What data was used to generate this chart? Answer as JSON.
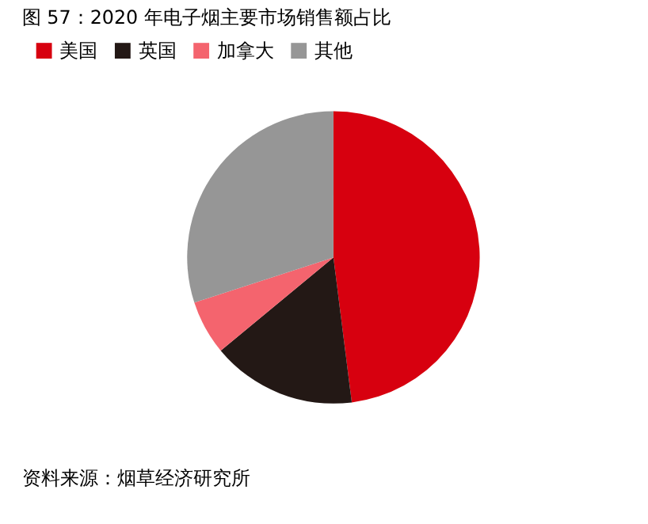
{
  "chart_data": {
    "type": "pie",
    "title": "图 57：2020 年电子烟主要市场销售额占比",
    "categories": [
      "美国",
      "英国",
      "加拿大",
      "其他"
    ],
    "values": [
      48,
      16,
      6,
      30
    ],
    "colors": [
      "#d7000f",
      "#231815",
      "#f4646e",
      "#969696"
    ],
    "legend": "top",
    "annotations": [
      "资料来源：烟草经济研究所"
    ]
  }
}
